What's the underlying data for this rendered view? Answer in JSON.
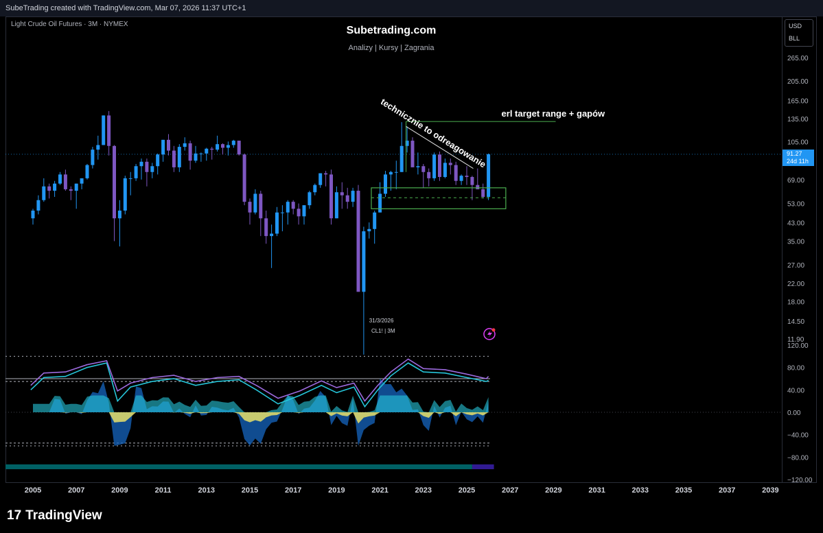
{
  "header": {
    "attribution": "SubeTrading created with TradingView.com, Mar 07, 2026 11:37 UTC+1"
  },
  "chart_title": {
    "symbol_line": "Light Crude Oil Futures · 3M · NYMEX",
    "brand": "Subetrading.com",
    "tagline": "Analizy | Kursy | Zagrania"
  },
  "currency": {
    "code": "USD",
    "unit": "BLL"
  },
  "last_price": {
    "value": "91.27",
    "countdown": "24d 11h"
  },
  "annotations": {
    "diagonal": "technicznie to odreagowanie",
    "target": "erl target range + gapów",
    "candle_info_date": "31/3/2026",
    "candle_info_symbol": "CL1! | 3M"
  },
  "branding": {
    "footer": "TradingView",
    "logo_mark": "17"
  },
  "colors": {
    "bull": "#2196f3",
    "bear": "#7e57c2",
    "accent_green": "#4caf50",
    "background": "#000000",
    "osc_cyan": "#26c6da",
    "osc_yellow": "#e8e06a",
    "osc_blue": "#1565c0",
    "osc_purple": "#9c6ade"
  },
  "chart_data": [
    {
      "type": "candlestick",
      "title": "Light Crude Oil Futures · 3M · NYMEX",
      "y_scale": "log",
      "y_ticks": [
        "265.00",
        "205.00",
        "165.00",
        "135.00",
        "105.00",
        "69.00",
        "53.00",
        "43.00",
        "35.00",
        "27.00",
        "22.00",
        "18.00",
        "14.50",
        "11.90"
      ],
      "x_ticks": [
        "2005",
        "2007",
        "2009",
        "2011",
        "2013",
        "2015",
        "2017",
        "2019",
        "2021",
        "2023",
        "2025",
        "2027",
        "2029",
        "2031",
        "2033",
        "2035",
        "2037",
        "2039"
      ],
      "last_value": 91.27,
      "target_line": 131,
      "zone": {
        "from": 50,
        "to": 63,
        "mid": 56.5
      },
      "points": [
        [
          2005.0,
          45,
          50,
          42,
          49
        ],
        [
          2005.25,
          49,
          58,
          47,
          55
        ],
        [
          2005.5,
          55,
          70,
          54,
          64
        ],
        [
          2005.75,
          64,
          66,
          56,
          61
        ],
        [
          2006.0,
          61,
          68,
          57,
          66
        ],
        [
          2006.25,
          66,
          75,
          65,
          73
        ],
        [
          2006.5,
          73,
          77,
          61,
          62
        ],
        [
          2006.75,
          62,
          64,
          55,
          61
        ],
        [
          2007.0,
          61,
          66,
          50,
          66
        ],
        [
          2007.25,
          66,
          70,
          62,
          70
        ],
        [
          2007.5,
          70,
          82,
          69,
          81
        ],
        [
          2007.75,
          81,
          99,
          78,
          96
        ],
        [
          2008.0,
          96,
          112,
          86,
          101
        ],
        [
          2008.25,
          101,
          140,
          101,
          140
        ],
        [
          2008.5,
          140,
          147,
          90,
          100
        ],
        [
          2008.75,
          100,
          101,
          35,
          45
        ],
        [
          2009.0,
          45,
          55,
          33,
          49
        ],
        [
          2009.25,
          49,
          72,
          47,
          70
        ],
        [
          2009.5,
          70,
          75,
          58,
          70
        ],
        [
          2009.75,
          70,
          82,
          68,
          80
        ],
        [
          2010.0,
          80,
          87,
          69,
          84
        ],
        [
          2010.25,
          84,
          87,
          64,
          75
        ],
        [
          2010.5,
          75,
          83,
          70,
          80
        ],
        [
          2010.75,
          80,
          92,
          73,
          91
        ],
        [
          2011.0,
          91,
          107,
          84,
          107
        ],
        [
          2011.25,
          107,
          114,
          90,
          95
        ],
        [
          2011.5,
          95,
          100,
          75,
          79
        ],
        [
          2011.75,
          79,
          102,
          75,
          99
        ],
        [
          2012.0,
          99,
          110,
          95,
          103
        ],
        [
          2012.25,
          103,
          106,
          77,
          85
        ],
        [
          2012.5,
          85,
          100,
          83,
          92
        ],
        [
          2012.75,
          92,
          93,
          84,
          92
        ],
        [
          2013.0,
          92,
          98,
          85,
          97
        ],
        [
          2013.25,
          97,
          99,
          86,
          96
        ],
        [
          2013.5,
          96,
          112,
          94,
          102
        ],
        [
          2013.75,
          102,
          103,
          91,
          98
        ],
        [
          2014.0,
          98,
          105,
          90,
          101
        ],
        [
          2014.25,
          101,
          107,
          98,
          106
        ],
        [
          2014.5,
          106,
          106,
          90,
          91
        ],
        [
          2014.75,
          91,
          92,
          52,
          54
        ],
        [
          2015.0,
          54,
          56,
          42,
          48
        ],
        [
          2015.25,
          48,
          62,
          47,
          59
        ],
        [
          2015.5,
          59,
          61,
          37,
          45
        ],
        [
          2015.75,
          45,
          49,
          34,
          37
        ],
        [
          2016.0,
          37,
          42,
          26,
          38
        ],
        [
          2016.25,
          38,
          51,
          37,
          48
        ],
        [
          2016.5,
          48,
          52,
          39,
          48
        ],
        [
          2016.75,
          48,
          55,
          42,
          54
        ],
        [
          2017.0,
          54,
          55,
          47,
          50
        ],
        [
          2017.25,
          50,
          53,
          42,
          46
        ],
        [
          2017.5,
          46,
          52,
          42,
          52
        ],
        [
          2017.75,
          52,
          61,
          50,
          60
        ],
        [
          2018.0,
          60,
          66,
          58,
          65
        ],
        [
          2018.25,
          65,
          74,
          63,
          74
        ],
        [
          2018.5,
          74,
          76,
          64,
          73
        ],
        [
          2018.75,
          73,
          77,
          42,
          45
        ],
        [
          2019.0,
          45,
          64,
          45,
          60
        ],
        [
          2019.25,
          60,
          67,
          50,
          58
        ],
        [
          2019.5,
          58,
          63,
          50,
          54
        ],
        [
          2019.75,
          54,
          63,
          51,
          61
        ],
        [
          2020.0,
          61,
          65,
          20,
          20
        ],
        [
          2020.25,
          20,
          41,
          10,
          39
        ],
        [
          2020.5,
          39,
          43,
          36,
          40
        ],
        [
          2020.75,
          40,
          49,
          34,
          48
        ],
        [
          2021.0,
          48,
          67,
          48,
          59
        ],
        [
          2021.25,
          59,
          76,
          57,
          73
        ],
        [
          2021.5,
          73,
          76,
          61,
          75
        ],
        [
          2021.75,
          75,
          85,
          62,
          75
        ],
        [
          2022.0,
          75,
          130,
          75,
          100
        ],
        [
          2022.25,
          100,
          124,
          93,
          106
        ],
        [
          2022.5,
          106,
          110,
          81,
          79
        ],
        [
          2022.75,
          79,
          93,
          73,
          80
        ],
        [
          2023.0,
          80,
          82,
          63,
          75
        ],
        [
          2023.25,
          75,
          78,
          64,
          70
        ],
        [
          2023.5,
          70,
          93,
          68,
          91
        ],
        [
          2023.75,
          91,
          94,
          68,
          71
        ],
        [
          2024.0,
          71,
          87,
          70,
          83
        ],
        [
          2024.25,
          83,
          87,
          73,
          81
        ],
        [
          2024.5,
          81,
          84,
          65,
          68
        ],
        [
          2024.75,
          68,
          73,
          65,
          72
        ],
        [
          2025.0,
          72,
          80,
          65,
          71
        ],
        [
          2025.25,
          71,
          72,
          55,
          65
        ],
        [
          2025.5,
          65,
          78,
          62,
          62
        ],
        [
          2025.75,
          62,
          66,
          56,
          57
        ],
        [
          2026.0,
          57,
          92,
          55,
          91.27
        ]
      ]
    },
    {
      "type": "line",
      "title": "Oscillator",
      "y_ticks": [
        "120.00",
        "80.00",
        "40.00",
        "0.00",
        "−40.00",
        "−80.00",
        "−120.00"
      ],
      "ylim": [
        -120,
        120
      ],
      "levels": [
        100,
        60,
        55,
        -55,
        -60
      ],
      "series": [
        {
          "values_x": [
            2004.9,
            2005.5,
            2006.5,
            2007.5,
            2008.4,
            2008.9,
            2009.5,
            2010.5,
            2011.5,
            2012.5,
            2013.5,
            2014.5,
            2015.3,
            2016.3,
            2017.3,
            2018.3,
            2019.0,
            2019.8,
            2020.3,
            2020.9,
            2021.5,
            2022.3,
            2023.0,
            2024.0,
            2025.0,
            2025.9,
            2026.0
          ],
          "values": [
            40,
            62,
            64,
            80,
            88,
            20,
            45,
            55,
            60,
            48,
            55,
            58,
            40,
            15,
            30,
            48,
            35,
            45,
            10,
            40,
            65,
            88,
            72,
            70,
            62,
            55,
            57
          ]
        },
        {
          "values_x": [
            2004.9,
            2005.5,
            2006.5,
            2007.5,
            2008.4,
            2008.9,
            2009.5,
            2010.5,
            2011.5,
            2012.5,
            2013.5,
            2014.5,
            2015.3,
            2016.3,
            2017.3,
            2018.3,
            2019.0,
            2019.8,
            2020.3,
            2020.9,
            2021.5,
            2022.3,
            2023.0,
            2024.0,
            2025.0,
            2025.9,
            2026.0
          ],
          "values": [
            48,
            70,
            72,
            85,
            92,
            38,
            52,
            62,
            66,
            55,
            62,
            64,
            48,
            25,
            38,
            56,
            44,
            52,
            20,
            48,
            72,
            95,
            78,
            76,
            68,
            60,
            64
          ]
        }
      ]
    }
  ]
}
